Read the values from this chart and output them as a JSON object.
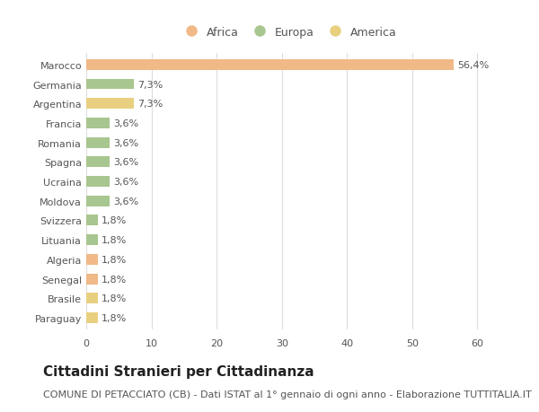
{
  "countries": [
    "Marocco",
    "Germania",
    "Argentina",
    "Francia",
    "Romania",
    "Spagna",
    "Ucraina",
    "Moldova",
    "Svizzera",
    "Lituania",
    "Algeria",
    "Senegal",
    "Brasile",
    "Paraguay"
  ],
  "values": [
    56.4,
    7.3,
    7.3,
    3.6,
    3.6,
    3.6,
    3.6,
    3.6,
    1.8,
    1.8,
    1.8,
    1.8,
    1.8,
    1.8
  ],
  "labels": [
    "56,4%",
    "7,3%",
    "7,3%",
    "3,6%",
    "3,6%",
    "3,6%",
    "3,6%",
    "3,6%",
    "1,8%",
    "1,8%",
    "1,8%",
    "1,8%",
    "1,8%",
    "1,8%"
  ],
  "colors": [
    "#f0b987",
    "#a8c68f",
    "#e8d080",
    "#a8c68f",
    "#a8c68f",
    "#a8c68f",
    "#a8c68f",
    "#a8c68f",
    "#a8c68f",
    "#a8c68f",
    "#f0b987",
    "#f0b987",
    "#e8d080",
    "#e8d080"
  ],
  "legend_labels": [
    "Africa",
    "Europa",
    "America"
  ],
  "legend_colors": [
    "#f0b987",
    "#a8c68f",
    "#e8d080"
  ],
  "xlim": [
    0,
    62
  ],
  "xticks": [
    0,
    10,
    20,
    30,
    40,
    50,
    60
  ],
  "title": "Cittadini Stranieri per Cittadinanza",
  "subtitle": "COMUNE DI PETACCIATO (CB) - Dati ISTAT al 1° gennaio di ogni anno - Elaborazione TUTTITALIA.IT",
  "bg_color": "#ffffff",
  "grid_color": "#dddddd",
  "bar_height": 0.55,
  "title_fontsize": 11,
  "subtitle_fontsize": 8,
  "label_fontsize": 8,
  "tick_fontsize": 8,
  "legend_fontsize": 9
}
